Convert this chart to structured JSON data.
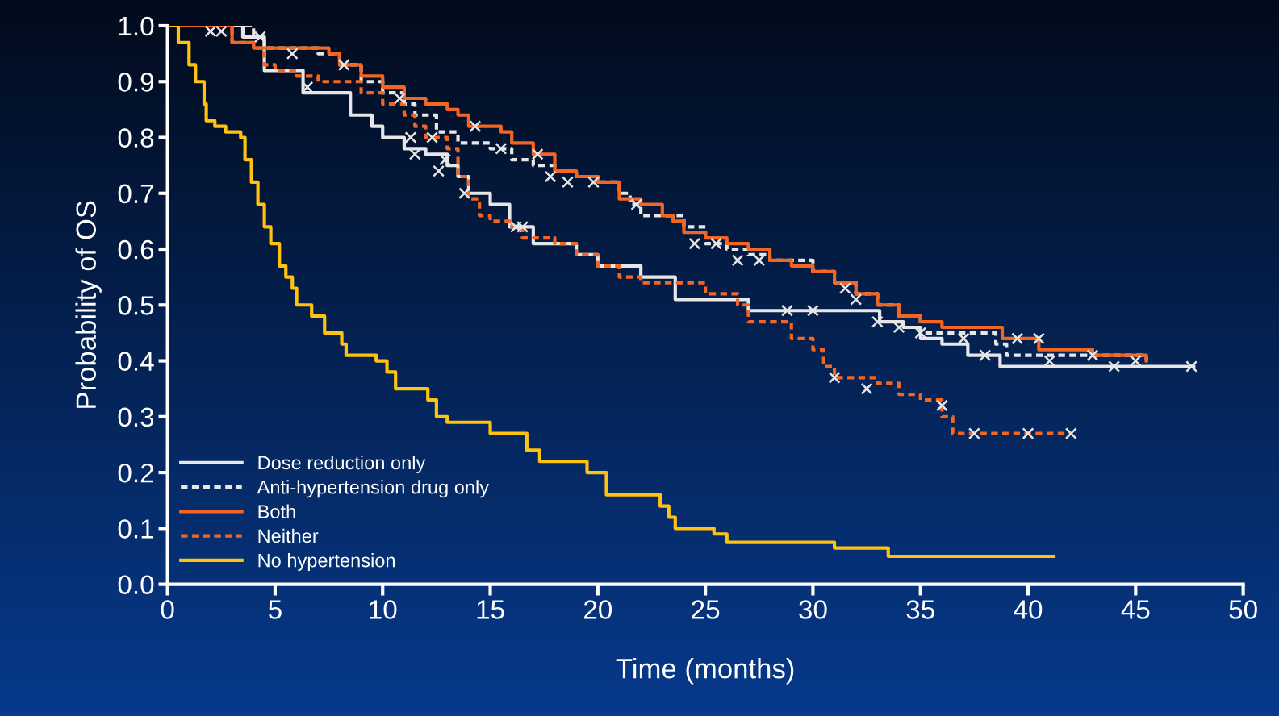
{
  "chart_data": {
    "type": "step",
    "xlabel": "Time (months)",
    "ylabel": "Probability of OS",
    "xlim": [
      0,
      50
    ],
    "xticks": [
      0,
      5,
      10,
      15,
      20,
      25,
      30,
      35,
      40,
      45,
      50
    ],
    "ylim": [
      0,
      1.0
    ],
    "yticks": [
      {
        "value": 0,
        "label": "0.0"
      },
      0.1,
      0.2,
      0.3,
      0.4,
      0.5,
      0.6,
      0.7,
      0.8,
      0.9,
      {
        "value": 1,
        "label": "1.0"
      }
    ],
    "grid": false,
    "legend": "bottom left",
    "series": [
      {
        "name": "Dose reduction only",
        "color": "#e6e6e6",
        "line_style": "solid",
        "x": [
          0,
          3.5,
          4.5,
          6.3,
          8.5,
          9.5,
          10,
          11,
          12,
          13,
          13.5,
          14,
          15,
          15.9,
          17,
          19,
          20,
          22,
          23.6,
          27,
          33.1,
          34.2,
          35,
          36,
          37.2,
          38.7,
          47.7
        ],
        "values": [
          1.0,
          0.98,
          0.92,
          0.88,
          0.84,
          0.82,
          0.8,
          0.78,
          0.77,
          0.75,
          0.73,
          0.7,
          0.68,
          0.64,
          0.61,
          0.59,
          0.57,
          0.55,
          0.51,
          0.49,
          0.47,
          0.46,
          0.44,
          0.43,
          0.41,
          0.39,
          0.39
        ]
      },
      {
        "name": "Anti-hypertension drug only",
        "color": "#e6e6e6",
        "line_style": "dotted",
        "x": [
          0,
          4,
          4.5,
          7,
          8,
          9,
          10,
          11,
          11.5,
          12.5,
          13.5,
          15,
          16,
          17,
          18,
          19,
          20,
          21,
          21.5,
          22,
          24,
          25,
          26,
          27,
          28,
          30,
          31,
          32,
          33,
          34,
          35,
          38,
          38.5,
          39,
          44,
          45.5
        ],
        "values": [
          1.0,
          0.98,
          0.96,
          0.95,
          0.93,
          0.9,
          0.88,
          0.86,
          0.84,
          0.81,
          0.79,
          0.78,
          0.76,
          0.75,
          0.74,
          0.73,
          0.72,
          0.7,
          0.68,
          0.66,
          0.64,
          0.61,
          0.6,
          0.59,
          0.58,
          0.56,
          0.54,
          0.52,
          0.5,
          0.48,
          0.45,
          0.45,
          0.43,
          0.41,
          0.41,
          0.4
        ]
      },
      {
        "name": "Both",
        "color": "#f26522",
        "line_style": "solid",
        "x": [
          0,
          3,
          4,
          7.5,
          8,
          9,
          10,
          11,
          12,
          13,
          13.5,
          14,
          15.5,
          16,
          17,
          18,
          19,
          20,
          21,
          22,
          23,
          23.5,
          24,
          25,
          26,
          27,
          28,
          29,
          30,
          31,
          32,
          33,
          34,
          35,
          36,
          38.8,
          40.5,
          43,
          45.5
        ],
        "values": [
          1.0,
          0.97,
          0.96,
          0.95,
          0.93,
          0.91,
          0.89,
          0.87,
          0.86,
          0.85,
          0.84,
          0.82,
          0.81,
          0.79,
          0.77,
          0.74,
          0.73,
          0.72,
          0.69,
          0.68,
          0.66,
          0.65,
          0.63,
          0.62,
          0.61,
          0.6,
          0.58,
          0.57,
          0.56,
          0.54,
          0.52,
          0.5,
          0.48,
          0.47,
          0.46,
          0.44,
          0.42,
          0.41,
          0.4
        ]
      },
      {
        "name": "Neither",
        "color": "#f26522",
        "line_style": "dotted",
        "x": [
          0,
          3,
          4,
          4.5,
          5,
          6,
          7,
          9,
          10,
          11,
          11.5,
          12,
          13,
          13.5,
          14,
          14.5,
          15,
          16,
          16.5,
          18,
          19,
          20,
          21,
          22,
          24,
          25,
          26.5,
          27,
          29,
          30,
          30.5,
          31,
          33,
          34,
          35,
          36,
          36.5,
          42
        ],
        "values": [
          1.0,
          0.97,
          0.96,
          0.93,
          0.92,
          0.91,
          0.9,
          0.88,
          0.86,
          0.84,
          0.82,
          0.8,
          0.78,
          0.73,
          0.69,
          0.66,
          0.65,
          0.64,
          0.62,
          0.61,
          0.59,
          0.57,
          0.55,
          0.54,
          0.54,
          0.52,
          0.5,
          0.47,
          0.44,
          0.42,
          0.39,
          0.37,
          0.36,
          0.34,
          0.33,
          0.3,
          0.27,
          0.27
        ]
      },
      {
        "name": "No hypertension",
        "color": "#ffc20e",
        "line_style": "solid",
        "x": [
          0,
          0.5,
          1,
          1.3,
          1.7,
          1.8,
          2.2,
          2.7,
          3.4,
          3.6,
          3.9,
          4.2,
          4.5,
          4.8,
          5.2,
          5.5,
          5.8,
          6.0,
          6.7,
          7.3,
          8.1,
          8.3,
          9.7,
          10.2,
          10.6,
          12.1,
          12.5,
          13.0,
          15.0,
          16.7,
          17.3,
          19.5,
          20.4,
          22.9,
          23.3,
          23.6,
          25.4,
          26.0,
          31.0,
          33.5,
          41.2
        ],
        "values": [
          1.0,
          0.97,
          0.93,
          0.9,
          0.86,
          0.83,
          0.82,
          0.81,
          0.8,
          0.76,
          0.72,
          0.68,
          0.64,
          0.61,
          0.57,
          0.55,
          0.53,
          0.5,
          0.48,
          0.45,
          0.43,
          0.41,
          0.4,
          0.38,
          0.35,
          0.33,
          0.3,
          0.29,
          0.27,
          0.24,
          0.22,
          0.2,
          0.16,
          0.14,
          0.12,
          0.1,
          0.09,
          0.075,
          0.065,
          0.05,
          0.05
        ]
      },
      {
        "type": "scatter",
        "color": "#e6e6e6",
        "marker": "cross",
        "x": [
          2,
          2.5,
          4.3,
          5.8,
          6.5,
          8.2,
          10.8,
          11.3,
          11.5,
          12.3,
          12.6,
          12.9,
          13.8,
          14.3,
          15.5,
          16.2,
          16.5,
          17.2,
          17.8,
          18.6,
          19.8,
          21.8,
          24.5,
          25.5,
          26.5,
          27.5,
          28.8,
          30,
          31,
          31.5,
          32,
          32.5,
          33,
          34,
          35,
          36,
          37,
          37.5,
          38,
          39.5,
          40,
          40.5,
          41,
          42,
          43,
          44,
          45,
          47.6
        ],
        "values": [
          0.99,
          0.99,
          0.98,
          0.95,
          0.89,
          0.93,
          0.87,
          0.8,
          0.77,
          0.8,
          0.74,
          0.76,
          0.7,
          0.82,
          0.78,
          0.64,
          0.64,
          0.77,
          0.73,
          0.72,
          0.72,
          0.68,
          0.61,
          0.61,
          0.58,
          0.58,
          0.49,
          0.49,
          0.37,
          0.53,
          0.51,
          0.35,
          0.47,
          0.46,
          0.45,
          0.32,
          0.44,
          0.27,
          0.41,
          0.44,
          0.27,
          0.44,
          0.4,
          0.27,
          0.41,
          0.39,
          0.4,
          0.39
        ]
      }
    ]
  }
}
